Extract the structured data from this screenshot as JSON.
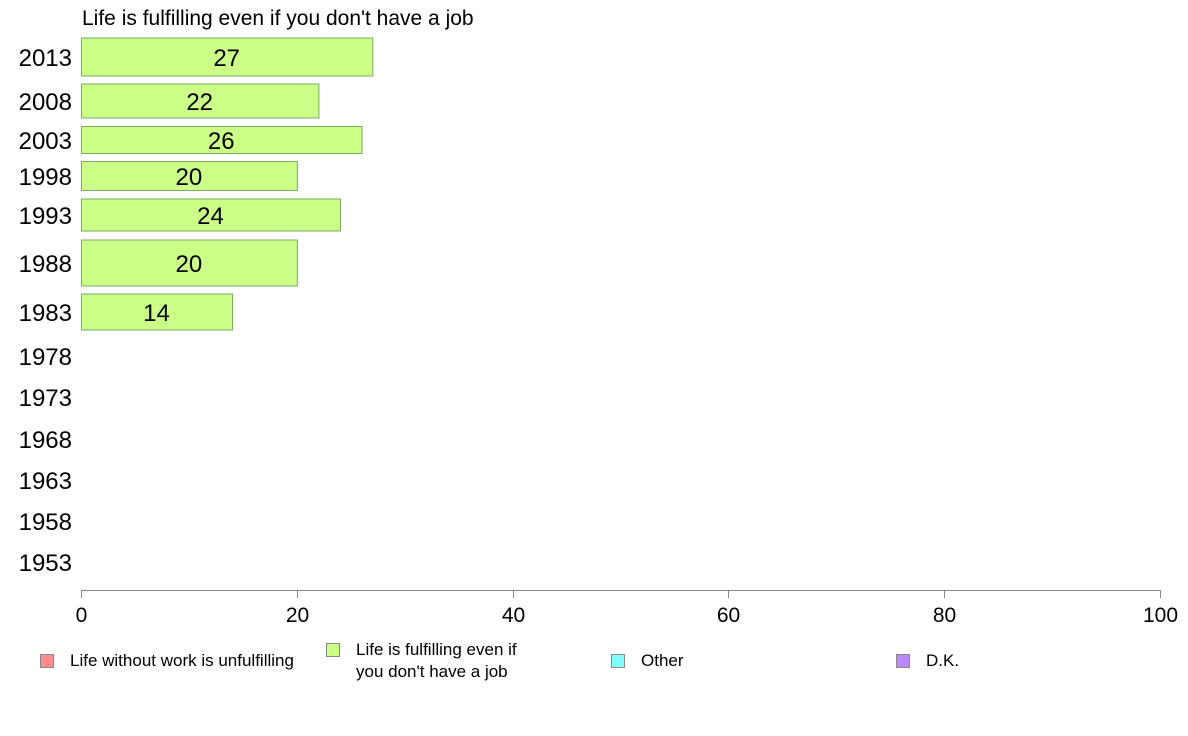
{
  "chart_data": {
    "type": "bar",
    "orientation": "horizontal",
    "title": "Life is fulfilling even if you don't have a job",
    "categories": [
      "2013",
      "2008",
      "2003",
      "1998",
      "1993",
      "1988",
      "1983",
      "1978",
      "1973",
      "1968",
      "1963",
      "1958",
      "1953"
    ],
    "series": [
      {
        "name": "Life is fulfilling even if you don't have a job",
        "color": "#ccff88",
        "values": [
          27,
          22,
          26,
          20,
          24,
          20,
          14,
          null,
          null,
          null,
          null,
          null,
          null
        ]
      }
    ],
    "data_labels": [
      "27",
      "22",
      "26",
      "20",
      "24",
      "20",
      "14",
      "",
      "",
      "",
      "",
      "",
      ""
    ],
    "xlim": [
      0,
      100
    ],
    "xticks": [
      0,
      20,
      40,
      60,
      80,
      100
    ],
    "grid": false,
    "legend_position": "bottom",
    "legend": [
      {
        "label": "Life without work is unfulfilling",
        "color": "#ff8c8c"
      },
      {
        "label": "Life is fulfilling even if\nyou don't have a job",
        "color": "#ccff88"
      },
      {
        "label": "Other",
        "color": "#80ffff"
      },
      {
        "label": "D.K.",
        "color": "#bb88ff"
      }
    ]
  }
}
